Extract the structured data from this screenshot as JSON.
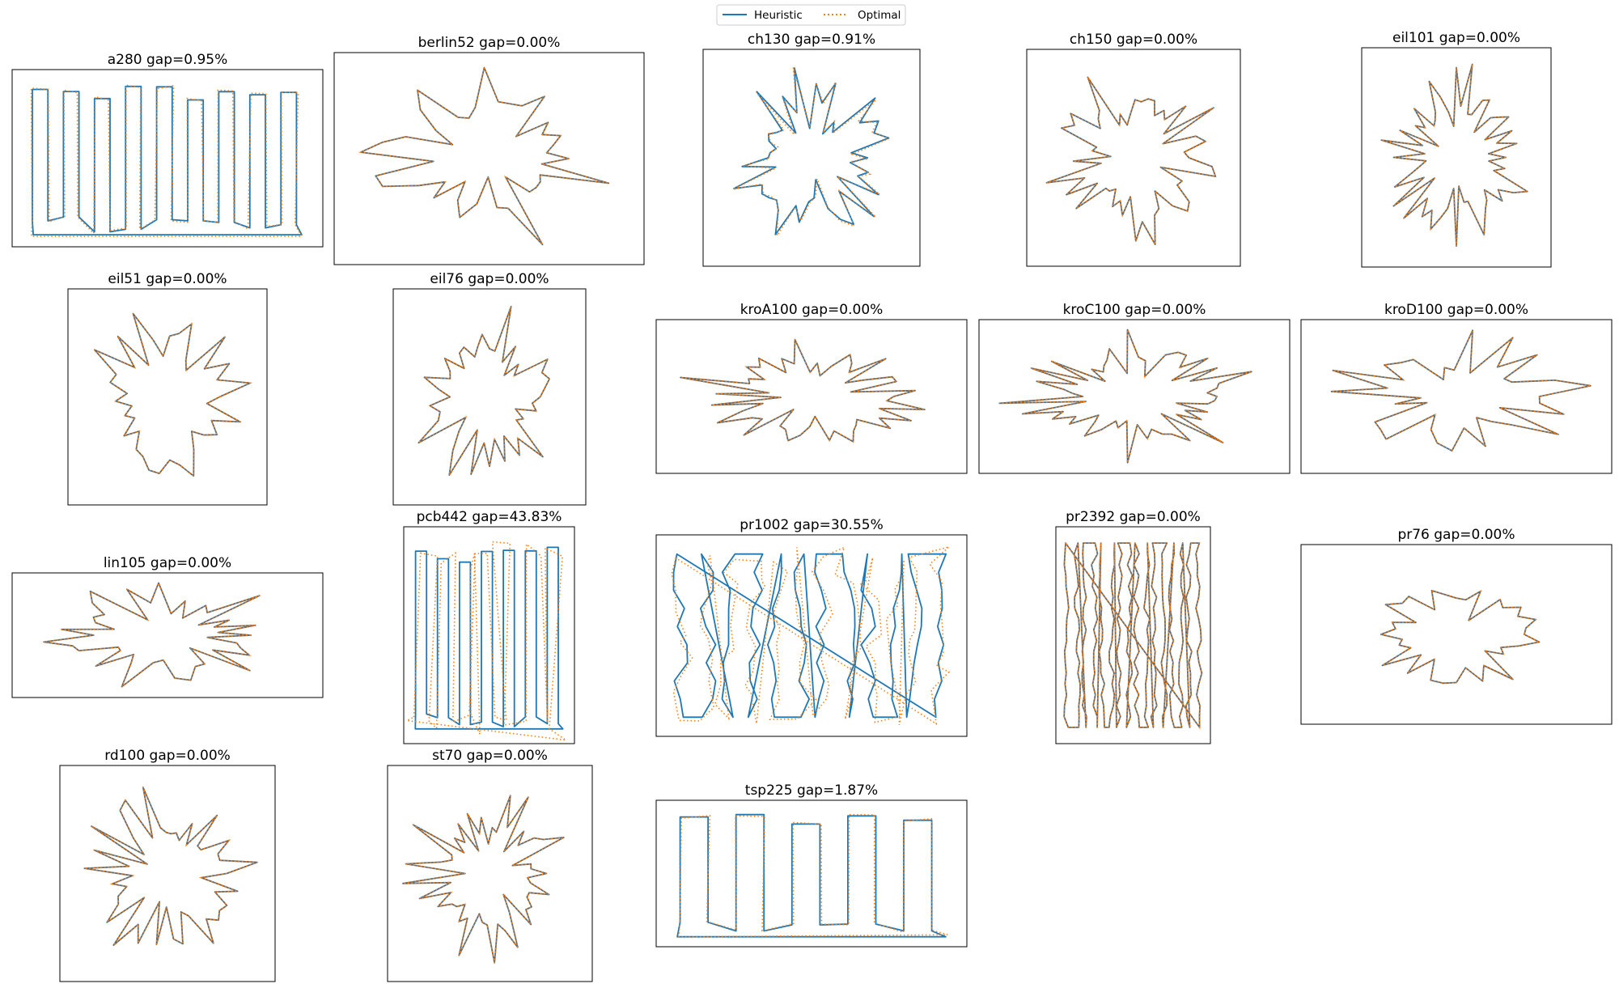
{
  "colors": {
    "heuristic": "#1f77b4",
    "optimal": "#ff7f0e",
    "tour": "#5f6b73",
    "frame": "#000000"
  },
  "legend": {
    "location": "top-center",
    "entries": [
      {
        "label": "Heuristic",
        "style": "solid",
        "color": "#1f77b4"
      },
      {
        "label": "Optimal",
        "style": "dotted",
        "color": "#ff7f0e"
      }
    ]
  },
  "chart_data": [
    {
      "type": "line",
      "instance": "a280",
      "gap_percent": 0.95,
      "title": "a280 gap=0.95%",
      "grid": false,
      "axes": "hidden"
    },
    {
      "type": "line",
      "instance": "berlin52",
      "gap_percent": 0.0,
      "title": "berlin52 gap=0.00%",
      "grid": false,
      "axes": "hidden"
    },
    {
      "type": "line",
      "instance": "ch130",
      "gap_percent": 0.91,
      "title": "ch130 gap=0.91%",
      "grid": false,
      "axes": "hidden"
    },
    {
      "type": "line",
      "instance": "ch150",
      "gap_percent": 0.0,
      "title": "ch150 gap=0.00%",
      "grid": false,
      "axes": "hidden"
    },
    {
      "type": "line",
      "instance": "eil101",
      "gap_percent": 0.0,
      "title": "eil101 gap=0.00%",
      "grid": false,
      "axes": "hidden"
    },
    {
      "type": "line",
      "instance": "eil51",
      "gap_percent": 0.0,
      "title": "eil51 gap=0.00%",
      "grid": false,
      "axes": "hidden"
    },
    {
      "type": "line",
      "instance": "eil76",
      "gap_percent": 0.0,
      "title": "eil76 gap=0.00%",
      "grid": false,
      "axes": "hidden"
    },
    {
      "type": "line",
      "instance": "kroA100",
      "gap_percent": 0.0,
      "title": "kroA100 gap=0.00%",
      "grid": false,
      "axes": "hidden"
    },
    {
      "type": "line",
      "instance": "kroC100",
      "gap_percent": 0.0,
      "title": "kroC100 gap=0.00%",
      "grid": false,
      "axes": "hidden"
    },
    {
      "type": "line",
      "instance": "kroD100",
      "gap_percent": 0.0,
      "title": "kroD100 gap=0.00%",
      "grid": false,
      "axes": "hidden"
    },
    {
      "type": "line",
      "instance": "lin105",
      "gap_percent": 0.0,
      "title": "lin105 gap=0.00%",
      "grid": false,
      "axes": "hidden"
    },
    {
      "type": "line",
      "instance": "pcb442",
      "gap_percent": 43.83,
      "title": "pcb442 gap=43.83%",
      "grid": false,
      "axes": "hidden"
    },
    {
      "type": "line",
      "instance": "pr1002",
      "gap_percent": 30.55,
      "title": "pr1002 gap=30.55%",
      "grid": false,
      "axes": "hidden"
    },
    {
      "type": "line",
      "instance": "pr2392",
      "gap_percent": 0.0,
      "title": "pr2392 gap=0.00%",
      "grid": false,
      "axes": "hidden"
    },
    {
      "type": "line",
      "instance": "pr76",
      "gap_percent": 0.0,
      "title": "pr76 gap=0.00%",
      "grid": false,
      "axes": "hidden"
    },
    {
      "type": "line",
      "instance": "rd100",
      "gap_percent": 0.0,
      "title": "rd100 gap=0.00%",
      "grid": false,
      "axes": "hidden"
    },
    {
      "type": "line",
      "instance": "st70",
      "gap_percent": 0.0,
      "title": "st70 gap=0.00%",
      "grid": false,
      "axes": "hidden"
    },
    {
      "type": "line",
      "instance": "tsp225",
      "gap_percent": 1.87,
      "title": "tsp225 gap=1.87%",
      "grid": false,
      "axes": "hidden"
    }
  ]
}
